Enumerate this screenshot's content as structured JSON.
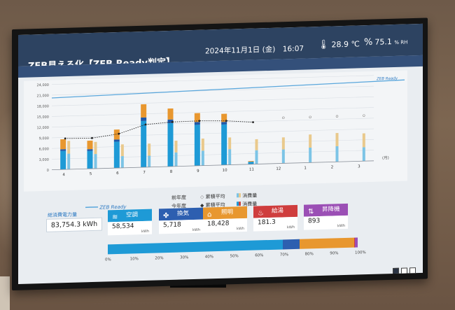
{
  "header": {
    "title": "ZEB見える化【ZEB Ready判定】",
    "datetime": "2024年11月1日 (金)　16:07",
    "temperature": "28.9 ℃",
    "humidity": "75.1",
    "humidity_unit": "% RH"
  },
  "chart": {
    "line_label": "ZEB Ready",
    "y_ticks": [
      "24,000",
      "21,000",
      "18,000",
      "15,000",
      "12,000",
      "9,000",
      "6,000",
      "3,000",
      "0"
    ],
    "y_max": 24000,
    "zeb_line": [
      20200,
      22500
    ],
    "months": [
      "4",
      "5",
      "6",
      "7",
      "8",
      "9",
      "10",
      "11",
      "12",
      "1",
      "2",
      "3"
    ],
    "month_unit": "(月)",
    "colors": {
      "blue": "#1e9ad6",
      "orange": "#e8972f",
      "darkblue": "#1d57a8",
      "red": "#c9453f",
      "prev_blue": "#7cc4e6",
      "prev_orange": "#e9c98c",
      "line": "#5aa7dc"
    },
    "current_year": [
      {
        "blue": 5200,
        "dark": 500,
        "orange": 2800
      },
      {
        "blue": 5000,
        "dark": 500,
        "orange": 2400
      },
      {
        "blue": 7400,
        "dark": 600,
        "orange": 2800
      },
      {
        "blue": 13000,
        "dark": 1000,
        "orange": 3700
      },
      {
        "blue": 12200,
        "dark": 1000,
        "orange": 3100
      },
      {
        "blue": 11500,
        "dark": 800,
        "orange": 2500
      },
      {
        "blue": 11400,
        "dark": 700,
        "orange": 2300
      },
      {
        "blue": 700,
        "dark": 0,
        "orange": 200
      }
    ],
    "previous_year": [
      {
        "blue": 4400,
        "orange": 3600
      },
      {
        "blue": 4100,
        "orange": 3400
      },
      {
        "blue": 3300,
        "orange": 3300
      },
      {
        "blue": 3200,
        "orange": 3400
      },
      {
        "blue": 3900,
        "orange": 3300
      },
      {
        "blue": 4200,
        "orange": 3400
      },
      {
        "blue": 4400,
        "orange": 3300
      },
      {
        "blue": 3900,
        "orange": 3100
      },
      {
        "blue": 3900,
        "orange": 3400
      },
      {
        "blue": 4200,
        "orange": 3700
      },
      {
        "blue": 4400,
        "orange": 3700
      },
      {
        "blue": 3900,
        "orange": 3900
      }
    ],
    "cumulative_avg": [
      8700,
      8600,
      9600,
      12000,
      12500,
      12600,
      12400,
      11800
    ]
  },
  "legend": {
    "prev_year": "前年度",
    "this_year": "今年度",
    "cum_avg_prev": "累積平均",
    "cum_avg_this": "累積平均",
    "usage_prev": "消費量",
    "usage_this": "消費量"
  },
  "total": {
    "label": "総消費電力量",
    "value": "83,754.3 kWh"
  },
  "categories": [
    {
      "name": "空調",
      "value": "58,534",
      "unit": "kWh",
      "color": "#1e9ad6",
      "icon": "ac-icon",
      "glyph": "≋"
    },
    {
      "name": "換気",
      "value": "5,718",
      "unit": "kWh",
      "color": "#2d5fb0",
      "icon": "fan-icon",
      "glyph": "✤"
    },
    {
      "name": "照明",
      "value": "18,428",
      "unit": "kWh",
      "color": "#e8972f",
      "icon": "lamp-icon",
      "glyph": "⌂"
    },
    {
      "name": "給湯",
      "value": "181.3",
      "unit": "kWh",
      "color": "#cf3d3d",
      "icon": "water-heater-icon",
      "glyph": "♨"
    },
    {
      "name": "昇降機",
      "value": "893",
      "unit": "kWh",
      "color": "#9b4fb5",
      "icon": "elevator-icon",
      "glyph": "⇅"
    }
  ],
  "ratio": {
    "shares": [
      69.9,
      6.8,
      22.0,
      0.2,
      1.1
    ],
    "ticks": [
      "0%",
      "10%",
      "20%",
      "30%",
      "40%",
      "50%",
      "60%",
      "70%",
      "80%",
      "90%",
      "100%"
    ]
  },
  "nav": {
    "dots": 3,
    "active": 0
  }
}
